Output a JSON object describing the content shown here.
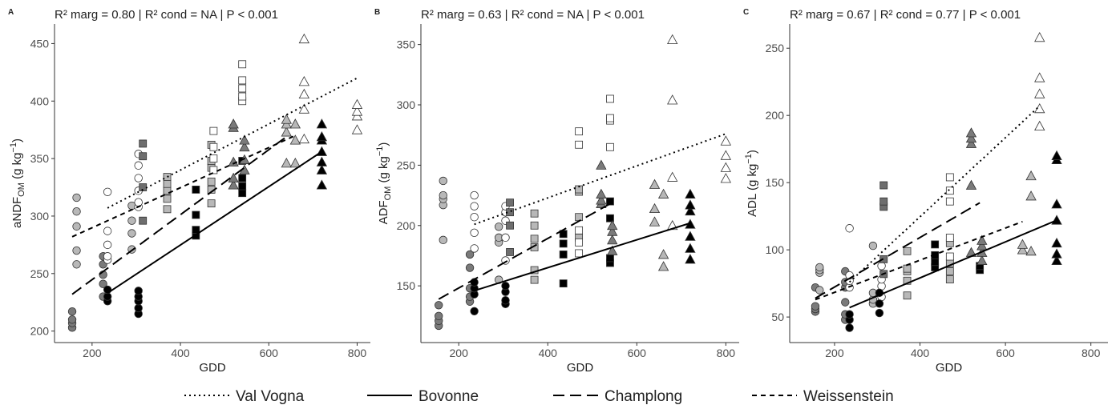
{
  "legend": [
    {
      "name": "Val Vogna",
      "dash": "2,4"
    },
    {
      "name": "Bovonne",
      "dash": "none"
    },
    {
      "name": "Champlong",
      "dash": "14,7"
    },
    {
      "name": "Weissenstein",
      "dash": "6,5"
    }
  ],
  "chart_data": [
    {
      "type": "scatter",
      "panel": "A",
      "title": "R² marg = 0.80  | R² cond = NA  | P < 0.001",
      "xlabel": "GDD",
      "ylabel": [
        "aNDF",
        "OM",
        " (g kg",
        "−1",
        ")"
      ],
      "ylabel_style": [
        "normal",
        "sub",
        "normal",
        "sup",
        "normal"
      ],
      "xlim": [
        115,
        830
      ],
      "ylim": [
        190,
        467
      ],
      "xticks": [
        200,
        400,
        600,
        800
      ],
      "yticks": [
        200,
        250,
        300,
        350,
        400,
        450
      ],
      "groups": [
        {
          "marker": "circle",
          "color": "#7a7a7a",
          "x": [
            155,
            155,
            155,
            155,
            225,
            225,
            225,
            225,
            225
          ],
          "y": [
            203,
            207,
            210,
            217,
            230,
            241,
            249,
            258,
            265
          ]
        },
        {
          "marker": "circle",
          "color": "#b8b8b8",
          "x": [
            165,
            165,
            165,
            165,
            165,
            290,
            290,
            290,
            290
          ],
          "y": [
            258,
            270,
            291,
            304,
            316,
            271,
            285,
            296,
            309
          ]
        },
        {
          "marker": "circle",
          "color": "#ffffff",
          "x": [
            235,
            235,
            235,
            235,
            235,
            305,
            305,
            305,
            305,
            305,
            305
          ],
          "y": [
            262,
            265,
            275,
            287,
            321,
            308,
            312,
            322,
            333,
            344,
            354
          ]
        },
        {
          "marker": "circle",
          "color": "#000000",
          "x": [
            235,
            235,
            235,
            305,
            305,
            305,
            305,
            305
          ],
          "y": [
            226,
            230,
            236,
            215,
            220,
            226,
            230,
            235
          ]
        },
        {
          "marker": "square",
          "color": "#6e6e6e",
          "x": [
            315,
            315,
            315,
            315
          ],
          "y": [
            296,
            325,
            352,
            363
          ]
        },
        {
          "marker": "square",
          "color": "#b8b8b8",
          "x": [
            370,
            370,
            370,
            370,
            370,
            470,
            470,
            470,
            470,
            470,
            470
          ],
          "y": [
            306,
            315,
            322,
            328,
            334,
            311,
            323,
            330,
            342,
            348,
            362
          ]
        },
        {
          "marker": "square",
          "color": "#000000",
          "x": [
            435,
            435,
            435,
            435,
            540,
            540,
            540,
            540
          ],
          "y": [
            283,
            288,
            301,
            323,
            320,
            326,
            333,
            348
          ]
        },
        {
          "marker": "square",
          "color": "#ffffff",
          "x": [
            475,
            475,
            475,
            475,
            540,
            540,
            540,
            540,
            540
          ],
          "y": [
            340,
            350,
            360,
            374,
            400,
            404,
            411,
            418,
            432
          ]
        },
        {
          "marker": "triangle",
          "color": "#7a7a7a",
          "x": [
            520,
            520,
            520,
            520,
            520,
            545,
            545,
            545,
            545
          ],
          "y": [
            327,
            333,
            347,
            377,
            380,
            340,
            349,
            360,
            366
          ]
        },
        {
          "marker": "triangle",
          "color": "#b8b8b8",
          "x": [
            640,
            640,
            640,
            640,
            660,
            660,
            660
          ],
          "y": [
            346,
            373,
            380,
            384,
            346,
            366,
            380
          ]
        },
        {
          "marker": "triangle",
          "color": "#ffffff",
          "x": [
            680,
            680,
            680,
            680,
            680,
            800,
            800,
            800,
            800
          ],
          "y": [
            367,
            393,
            406,
            417,
            454,
            375,
            387,
            391,
            397
          ]
        },
        {
          "marker": "triangle",
          "color": "#000000",
          "x": [
            720,
            720,
            720,
            720,
            720,
            720,
            720
          ],
          "y": [
            327,
            340,
            347,
            356,
            366,
            369,
            380
          ]
        }
      ],
      "fits": [
        {
          "x": [
            235,
            800
          ],
          "y": [
            307,
            420
          ]
        },
        {
          "x": [
            235,
            720
          ],
          "y": [
            233,
            356
          ]
        },
        {
          "x": [
            155,
            640
          ],
          "y": [
            232,
            369
          ]
        },
        {
          "x": [
            155,
            660
          ],
          "y": [
            282,
            370
          ]
        }
      ]
    },
    {
      "type": "scatter",
      "panel": "B",
      "title": "R² marg = 0.63  | R² cond = NA  | P < 0.001",
      "xlabel": "GDD",
      "ylabel": [
        "ADF",
        "OM",
        " (g kg",
        "−1",
        ")"
      ],
      "ylabel_style": [
        "normal",
        "sub",
        "normal",
        "sup",
        "normal"
      ],
      "xlim": [
        115,
        830
      ],
      "ylim": [
        103,
        367
      ],
      "xticks": [
        200,
        400,
        600,
        800
      ],
      "yticks": [
        150,
        200,
        250,
        300,
        350
      ],
      "groups": [
        {
          "marker": "circle",
          "color": "#7a7a7a",
          "x": [
            155,
            155,
            155,
            155,
            225,
            225,
            225,
            225,
            225
          ],
          "y": [
            117,
            121,
            125,
            134,
            137,
            141,
            148,
            165,
            176
          ]
        },
        {
          "marker": "circle",
          "color": "#b8b8b8",
          "x": [
            165,
            165,
            165,
            165,
            165,
            290,
            290,
            290,
            290
          ],
          "y": [
            188,
            217,
            222,
            225,
            237,
            155,
            186,
            190,
            199
          ]
        },
        {
          "marker": "circle",
          "color": "#ffffff",
          "x": [
            235,
            235,
            235,
            235,
            235,
            305,
            305,
            305,
            305,
            305
          ],
          "y": [
            181,
            194,
            207,
            216,
            225,
            171,
            190,
            204,
            211,
            216
          ]
        },
        {
          "marker": "circle",
          "color": "#000000",
          "x": [
            235,
            235,
            235,
            235,
            305,
            305,
            305,
            305
          ],
          "y": [
            129,
            143,
            148,
            153,
            135,
            138,
            145,
            150
          ]
        },
        {
          "marker": "square",
          "color": "#6e6e6e",
          "x": [
            315,
            315,
            315,
            315
          ],
          "y": [
            178,
            200,
            211,
            219
          ]
        },
        {
          "marker": "square",
          "color": "#b8b8b8",
          "x": [
            370,
            370,
            370,
            370,
            370,
            370,
            470,
            470,
            470,
            470
          ],
          "y": [
            155,
            163,
            182,
            189,
            200,
            210,
            190,
            207,
            228,
            230
          ]
        },
        {
          "marker": "square",
          "color": "#000000",
          "x": [
            435,
            435,
            435,
            435,
            540,
            540,
            540,
            540
          ],
          "y": [
            152,
            176,
            185,
            193,
            169,
            173,
            206,
            220
          ]
        },
        {
          "marker": "square",
          "color": "#ffffff",
          "x": [
            470,
            470,
            470,
            470,
            470,
            540,
            540,
            540,
            540
          ],
          "y": [
            177,
            186,
            196,
            267,
            278,
            265,
            287,
            289,
            305
          ]
        },
        {
          "marker": "triangle",
          "color": "#7a7a7a",
          "x": [
            520,
            520,
            520,
            520,
            545,
            545,
            545,
            545
          ],
          "y": [
            218,
            221,
            226,
            250,
            179,
            188,
            195,
            200
          ]
        },
        {
          "marker": "triangle",
          "color": "#b8b8b8",
          "x": [
            640,
            640,
            640,
            660,
            660,
            660
          ],
          "y": [
            203,
            214,
            234,
            166,
            176,
            226
          ]
        },
        {
          "marker": "triangle",
          "color": "#ffffff",
          "x": [
            680,
            680,
            680,
            680,
            800,
            800,
            800,
            800
          ],
          "y": [
            200,
            240,
            304,
            354,
            239,
            248,
            258,
            270
          ]
        },
        {
          "marker": "triangle",
          "color": "#000000",
          "x": [
            720,
            720,
            720,
            720,
            720,
            720,
            720
          ],
          "y": [
            172,
            181,
            191,
            201,
            212,
            217,
            226
          ]
        }
      ],
      "fits": [
        {
          "x": [
            235,
            800
          ],
          "y": [
            201,
            276
          ]
        },
        {
          "x": [
            235,
            720
          ],
          "y": [
            146,
            202
          ]
        },
        {
          "x": [
            155,
            540
          ],
          "y": [
            139,
            218
          ]
        },
        null
      ]
    },
    {
      "type": "scatter",
      "panel": "C",
      "title": "R² marg = 0.67  | R² cond = 0.77  | P < 0.001",
      "xlabel": "GDD",
      "ylabel": [
        "ADL (g kg",
        "−1",
        ")"
      ],
      "ylabel_style": [
        "normal",
        "sup",
        "normal"
      ],
      "xlim": [
        95,
        840
      ],
      "ylim": [
        31,
        268
      ],
      "xticks": [
        200,
        400,
        600,
        800
      ],
      "yticks": [
        50,
        100,
        150,
        200,
        250
      ],
      "groups": [
        {
          "marker": "circle",
          "color": "#7a7a7a",
          "x": [
            155,
            155,
            155,
            155,
            225,
            225,
            225,
            225,
            225,
            225
          ],
          "y": [
            54,
            56,
            58,
            72,
            48,
            52,
            61,
            72,
            76,
            84
          ]
        },
        {
          "marker": "circle",
          "color": "#b8b8b8",
          "x": [
            165,
            165,
            165,
            165,
            290,
            290,
            290,
            290
          ],
          "y": [
            70,
            83,
            85,
            87,
            60,
            63,
            68,
            103
          ]
        },
        {
          "marker": "circle",
          "color": "#ffffff",
          "x": [
            235,
            235,
            235,
            235,
            310,
            310,
            310,
            310
          ],
          "y": [
            72,
            77,
            81,
            116,
            65,
            73,
            78,
            88
          ]
        },
        {
          "marker": "circle",
          "color": "#000000",
          "x": [
            235,
            235,
            235,
            305,
            305,
            305
          ],
          "y": [
            42,
            48,
            52,
            53,
            60,
            68
          ]
        },
        {
          "marker": "square",
          "color": "#6e6e6e",
          "x": [
            315,
            315,
            315,
            315,
            315
          ],
          "y": [
            82,
            93,
            132,
            136,
            148
          ]
        },
        {
          "marker": "square",
          "color": "#b8b8b8",
          "x": [
            370,
            370,
            370,
            370,
            370,
            470,
            470,
            470,
            470
          ],
          "y": [
            66,
            77,
            84,
            86,
            99,
            78,
            84,
            90,
            105
          ]
        },
        {
          "marker": "square",
          "color": "#000000",
          "x": [
            435,
            435,
            435,
            435,
            540,
            540
          ],
          "y": [
            87,
            91,
            96,
            104,
            85,
            88
          ]
        },
        {
          "marker": "square",
          "color": "#ffffff",
          "x": [
            470,
            470,
            470,
            470,
            470
          ],
          "y": [
            95,
            109,
            136,
            144,
            154
          ]
        },
        {
          "marker": "triangle",
          "color": "#7a7a7a",
          "x": [
            520,
            520,
            520,
            520,
            520,
            545,
            545,
            545,
            545
          ],
          "y": [
            98,
            148,
            179,
            183,
            187,
            92,
            98,
            103,
            107
          ]
        },
        {
          "marker": "triangle",
          "color": "#b8b8b8",
          "x": [
            640,
            640,
            660,
            660,
            660
          ],
          "y": [
            100,
            104,
            99,
            140,
            155
          ]
        },
        {
          "marker": "triangle",
          "color": "#ffffff",
          "x": [
            680,
            680,
            680,
            680,
            680
          ],
          "y": [
            192,
            205,
            216,
            228,
            258
          ]
        },
        {
          "marker": "triangle",
          "color": "#000000",
          "x": [
            720,
            720,
            720,
            720,
            720,
            720,
            720
          ],
          "y": [
            92,
            97,
            105,
            122,
            134,
            167,
            170
          ]
        }
      ],
      "fits": [
        {
          "x": [
            235,
            680
          ],
          "y": [
            76,
            207
          ]
        },
        {
          "x": [
            235,
            720
          ],
          "y": [
            57,
            122
          ]
        },
        {
          "x": [
            155,
            540
          ],
          "y": [
            64,
            135
          ]
        },
        {
          "x": [
            155,
            640
          ],
          "y": [
            63,
            121
          ]
        }
      ]
    }
  ]
}
